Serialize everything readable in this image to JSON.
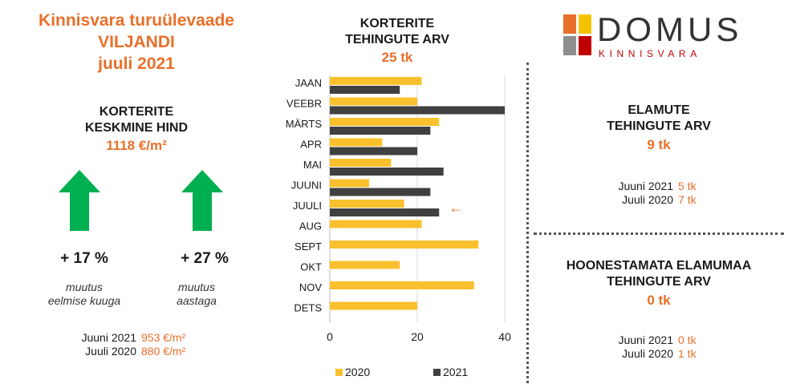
{
  "left": {
    "title_line1": "Kinnisvara turuülevaade",
    "title_line2": "VILJANDI",
    "title_line3": "juuli 2021",
    "price_heading_line1": "KORTERITE",
    "price_heading_line2": "KESKMINE HIND",
    "price_value": "1118 €/m²",
    "change_month_pct": "+ 17 %",
    "change_month_note_line1": "muutus",
    "change_month_note_line2": "eelmise kuuga",
    "change_year_pct": "+ 27 %",
    "change_year_note_line1": "muutus",
    "change_year_note_line2": "aastaga",
    "compare": [
      {
        "label": "Juuni 2021",
        "value": "953 €/m²"
      },
      {
        "label": "Juuli 2020",
        "value": "880 €/m²"
      }
    ]
  },
  "center": {
    "heading_line1": "KORTERITE",
    "heading_line2": "TEHINGUTE ARV",
    "value": "25 tk"
  },
  "logo": {
    "name": "DOMUS",
    "tagline": "KINNISVARA"
  },
  "right_top": {
    "heading_line1": "ELAMUTE",
    "heading_line2": "TEHINGUTE ARV",
    "value": "9 tk",
    "compare": [
      {
        "label": "Juuni 2021",
        "value": "5 tk"
      },
      {
        "label": "Juuli 2020",
        "value": "7 tk"
      }
    ]
  },
  "right_bottom": {
    "heading_line1": "HOONESTAMATA ELAMUMAA",
    "heading_line2": "TEHINGUTE ARV",
    "value": "0 tk",
    "compare": [
      {
        "label": "Juuni 2021",
        "value": "0 tk"
      },
      {
        "label": "Juuli 2020",
        "value": "1 tk"
      }
    ]
  },
  "colors": {
    "accent": "#e8702a",
    "arrow": "#00b050",
    "series_2020": "#fbc02d",
    "series_2021": "#404040"
  },
  "chart_data": {
    "type": "bar",
    "orientation": "horizontal",
    "categories": [
      "JAAN",
      "VEEBR",
      "MÄRTS",
      "APR",
      "MAI",
      "JUUNI",
      "JUULI",
      "AUG",
      "SEPT",
      "OKT",
      "NOV",
      "DETS"
    ],
    "series": [
      {
        "name": "2020",
        "values": [
          21,
          20,
          25,
          12,
          14,
          9,
          17,
          21,
          34,
          16,
          33,
          20
        ]
      },
      {
        "name": "2021",
        "values": [
          16,
          40,
          23,
          20,
          26,
          23,
          25,
          null,
          null,
          null,
          null,
          null
        ]
      }
    ],
    "xlim": [
      0,
      40
    ],
    "xticks": [
      0,
      20,
      40
    ],
    "grid": "vertical",
    "legend_position": "bottom",
    "highlight_category": "JUULI"
  }
}
